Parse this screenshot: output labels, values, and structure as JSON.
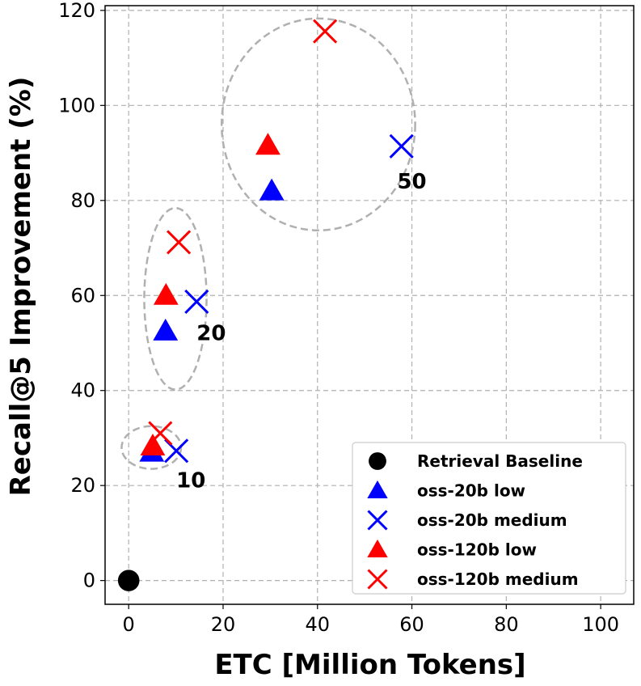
{
  "chart_data": {
    "type": "scatter",
    "xlabel": "ETC [Million Tokens]",
    "ylabel": "Recall@5 Improvement (%)",
    "xlim": [
      -5,
      107
    ],
    "ylim": [
      -5,
      121
    ],
    "xticks": [
      0,
      20,
      40,
      60,
      80,
      100
    ],
    "yticks": [
      0,
      20,
      40,
      60,
      80,
      100,
      120
    ],
    "grid": true,
    "legend_position": "bottom-right",
    "colors": {
      "baseline": "#000000",
      "low20": "#0000ff",
      "med20": "#0000ff",
      "low120": "#ff0000",
      "med120": "#ff0000",
      "cluster": "#b0b0b0"
    },
    "series": [
      {
        "name": "Retrieval Baseline",
        "marker": "circle",
        "color": "#000000",
        "points": [
          [
            0,
            0
          ]
        ]
      },
      {
        "name": "oss-20b low",
        "marker": "triangle",
        "color": "#0000ff",
        "points": [
          [
            4.9,
            27.0
          ],
          [
            7.8,
            52.5
          ],
          [
            30.3,
            82.0
          ]
        ]
      },
      {
        "name": "oss-20b medium",
        "marker": "x",
        "color": "#0000ff",
        "points": [
          [
            10.1,
            27.3
          ],
          [
            14.4,
            58.7
          ],
          [
            57.8,
            91.4
          ]
        ]
      },
      {
        "name": "oss-120b low",
        "marker": "triangle",
        "color": "#ff0000",
        "points": [
          [
            5.1,
            28.3
          ],
          [
            7.9,
            60.0
          ],
          [
            29.5,
            91.6
          ]
        ]
      },
      {
        "name": "oss-120b medium",
        "marker": "x",
        "color": "#ff0000",
        "points": [
          [
            6.7,
            31.0
          ],
          [
            10.6,
            71.2
          ],
          [
            41.6,
            115.6
          ]
        ]
      }
    ],
    "clusters": [
      {
        "label": "10",
        "cx": 4.8,
        "cy": 28.0,
        "rx": 6.3,
        "ry": 4.5,
        "label_x": 13.2,
        "label_y": 19.6
      },
      {
        "label": "20",
        "cx": 9.9,
        "cy": 59.3,
        "rx": 6.6,
        "ry": 19.1,
        "label_x": 17.5,
        "label_y": 50.6
      },
      {
        "label": "50",
        "cx": 40.2,
        "cy": 96.0,
        "rx": 20.5,
        "ry": 22.3,
        "label_x": 60.0,
        "label_y": 82.5
      }
    ]
  }
}
